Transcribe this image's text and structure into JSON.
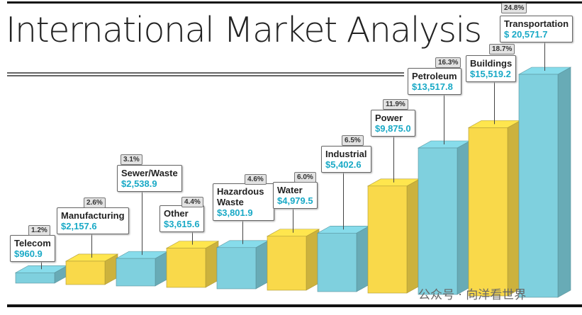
{
  "chart_data": {
    "type": "bar3d",
    "title": "International Market Analysis",
    "categories": [
      "Telecom",
      "Manufacturing",
      "Sewer/Waste",
      "Other",
      "Hazardous Waste",
      "Water",
      "Industrial",
      "Power",
      "Petroleum",
      "Buildings",
      "Transportation"
    ],
    "values": [
      960.9,
      2157.6,
      2538.9,
      3615.6,
      3801.9,
      4979.5,
      5402.6,
      9875.0,
      13517.8,
      15519.2,
      20571.7
    ],
    "value_labels": [
      "$960.9",
      "$2,157.6",
      "$2,538.9",
      "$3,615.6",
      "$3,801.9",
      "$4,979.5",
      "$5,402.6",
      "$9,875.0",
      "$13,517.8",
      "$15,519.2",
      "$ 20,571.7"
    ],
    "shares": [
      1.2,
      2.6,
      3.1,
      4.4,
      4.6,
      6.0,
      6.5,
      11.9,
      16.3,
      18.7,
      24.8
    ],
    "share_labels": [
      "1.2%",
      "2.6%",
      "3.1%",
      "4.4%",
      "4.6%",
      "6.0%",
      "6.5%",
      "11.9%",
      "16.3%",
      "18.7%",
      "24.8%"
    ],
    "colors": [
      "#7fd0de",
      "#f9d94a",
      "#7fd0de",
      "#f9d94a",
      "#7fd0de",
      "#f9d94a",
      "#7fd0de",
      "#f9d94a",
      "#7fd0de",
      "#f9d94a",
      "#7fd0de"
    ],
    "watermark": "公众号 · 向洋看世界"
  }
}
